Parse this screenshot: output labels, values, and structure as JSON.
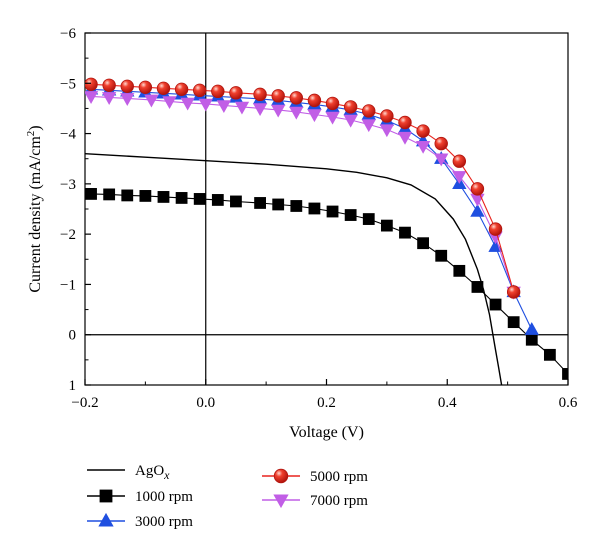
{
  "chart_data": {
    "type": "line",
    "title": "",
    "xlabel": "Voltage (V)",
    "ylabel_main": "Current density (mA/cm",
    "ylabel_sup": "2",
    "ylabel_close": ")",
    "xlim": [
      -0.2,
      0.6
    ],
    "ylim_top": -6,
    "ylim_bottom": 1,
    "x_ticks": [
      -0.2,
      0.0,
      0.2,
      0.4,
      0.6
    ],
    "x_tick_labels": [
      "−0.2",
      "0.0",
      "0.2",
      "0.4",
      "0.6"
    ],
    "y_ticks": [
      -6,
      -5,
      -4,
      -3,
      -2,
      -1,
      0,
      1
    ],
    "y_tick_labels": [
      "−6",
      "−5",
      "−4",
      "−3",
      "−2",
      "−1",
      "0",
      "1"
    ],
    "grid": false,
    "legend_position": "bottom",
    "series": [
      {
        "name": "AgOx",
        "legend_main": "AgO",
        "legend_sub": "x",
        "color": "#000000",
        "marker": "none",
        "x": [
          -0.2,
          -0.1,
          0.0,
          0.1,
          0.2,
          0.25,
          0.3,
          0.34,
          0.38,
          0.41,
          0.43,
          0.45,
          0.46,
          0.47,
          0.475,
          0.48,
          0.485,
          0.49
        ],
        "y": [
          -3.6,
          -3.53,
          -3.46,
          -3.39,
          -3.3,
          -3.23,
          -3.12,
          -2.98,
          -2.7,
          -2.3,
          -1.9,
          -1.3,
          -0.9,
          -0.4,
          -0.05,
          0.3,
          0.65,
          1.0
        ]
      },
      {
        "name": "1000 rpm",
        "color": "#000000",
        "marker": "square",
        "x": [
          -0.19,
          -0.16,
          -0.13,
          -0.1,
          -0.07,
          -0.04,
          -0.01,
          0.02,
          0.05,
          0.09,
          0.12,
          0.15,
          0.18,
          0.21,
          0.24,
          0.27,
          0.3,
          0.33,
          0.36,
          0.39,
          0.42,
          0.45,
          0.48,
          0.51,
          0.54,
          0.57,
          0.6
        ],
        "y": [
          -2.8,
          -2.79,
          -2.77,
          -2.76,
          -2.74,
          -2.72,
          -2.7,
          -2.68,
          -2.65,
          -2.62,
          -2.59,
          -2.56,
          -2.51,
          -2.45,
          -2.38,
          -2.3,
          -2.17,
          -2.03,
          -1.82,
          -1.57,
          -1.27,
          -0.95,
          -0.6,
          -0.25,
          0.1,
          0.4,
          0.78
        ]
      },
      {
        "name": "3000 rpm",
        "color": "#1f4fe0",
        "marker": "triangle-up",
        "x": [
          -0.19,
          -0.16,
          -0.13,
          -0.1,
          -0.07,
          -0.04,
          -0.01,
          0.02,
          0.05,
          0.09,
          0.12,
          0.15,
          0.18,
          0.21,
          0.24,
          0.27,
          0.3,
          0.33,
          0.36,
          0.39,
          0.42,
          0.45,
          0.48,
          0.51,
          0.54
        ],
        "y": [
          -4.88,
          -4.86,
          -4.84,
          -4.82,
          -4.8,
          -4.78,
          -4.76,
          -4.74,
          -4.72,
          -4.69,
          -4.66,
          -4.62,
          -4.58,
          -4.53,
          -4.47,
          -4.38,
          -4.26,
          -4.1,
          -3.85,
          -3.5,
          -3.0,
          -2.45,
          -1.75,
          -0.85,
          -0.1
        ]
      },
      {
        "name": "5000 rpm",
        "color": "#e8241e",
        "marker": "circle",
        "x": [
          -0.19,
          -0.16,
          -0.13,
          -0.1,
          -0.07,
          -0.04,
          -0.01,
          0.02,
          0.05,
          0.09,
          0.12,
          0.15,
          0.18,
          0.21,
          0.24,
          0.27,
          0.3,
          0.33,
          0.36,
          0.39,
          0.42,
          0.45,
          0.48,
          0.51
        ],
        "y": [
          -4.98,
          -4.96,
          -4.94,
          -4.92,
          -4.9,
          -4.88,
          -4.86,
          -4.84,
          -4.81,
          -4.78,
          -4.75,
          -4.71,
          -4.66,
          -4.6,
          -4.53,
          -4.45,
          -4.35,
          -4.22,
          -4.05,
          -3.8,
          -3.45,
          -2.9,
          -2.1,
          -0.85
        ]
      },
      {
        "name": "7000 rpm",
        "color": "#c15ee6",
        "marker": "triangle-down",
        "x": [
          -0.19,
          -0.16,
          -0.13,
          -0.09,
          -0.06,
          -0.03,
          0.0,
          0.03,
          0.06,
          0.09,
          0.12,
          0.15,
          0.18,
          0.21,
          0.24,
          0.27,
          0.3,
          0.33,
          0.36,
          0.39,
          0.42,
          0.45,
          0.48,
          0.51
        ],
        "y": [
          -4.74,
          -4.72,
          -4.7,
          -4.67,
          -4.64,
          -4.61,
          -4.59,
          -4.56,
          -4.53,
          -4.5,
          -4.47,
          -4.43,
          -4.38,
          -4.33,
          -4.27,
          -4.18,
          -4.08,
          -3.93,
          -3.75,
          -3.5,
          -3.15,
          -2.7,
          -1.95,
          -0.85
        ]
      }
    ]
  }
}
